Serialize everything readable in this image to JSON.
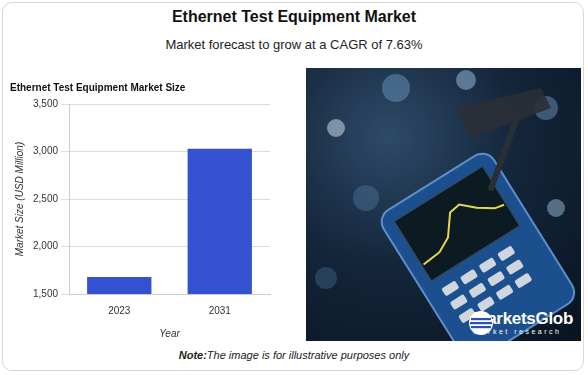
{
  "header": {
    "title": "Ethernet Test Equipment Market",
    "subtitle": "Market forecast to grow at a CAGR of 7.63%"
  },
  "chart_data": {
    "type": "bar",
    "title": "Ethernet Test Equipment Market Size",
    "x_label": "Year",
    "y_label": "Market Size (USD Million)",
    "categories": [
      "2023",
      "2031"
    ],
    "values": [
      1680,
      3030
    ],
    "color": "#3451d1",
    "ylim": [
      1500,
      3500
    ],
    "yticks": [
      {
        "value": 1500,
        "label": "1,500"
      },
      {
        "value": 2000,
        "label": "2,000"
      },
      {
        "value": 2500,
        "label": "2,500"
      },
      {
        "value": 3000,
        "label": "3,000"
      },
      {
        "value": 3500,
        "label": "3,500"
      }
    ],
    "grid": true
  },
  "logo": {
    "name": "MarketsGlob",
    "tagline": "market research"
  },
  "footer": {
    "note_label": "Note:",
    "note": "The image is for illustrative purposes only"
  }
}
